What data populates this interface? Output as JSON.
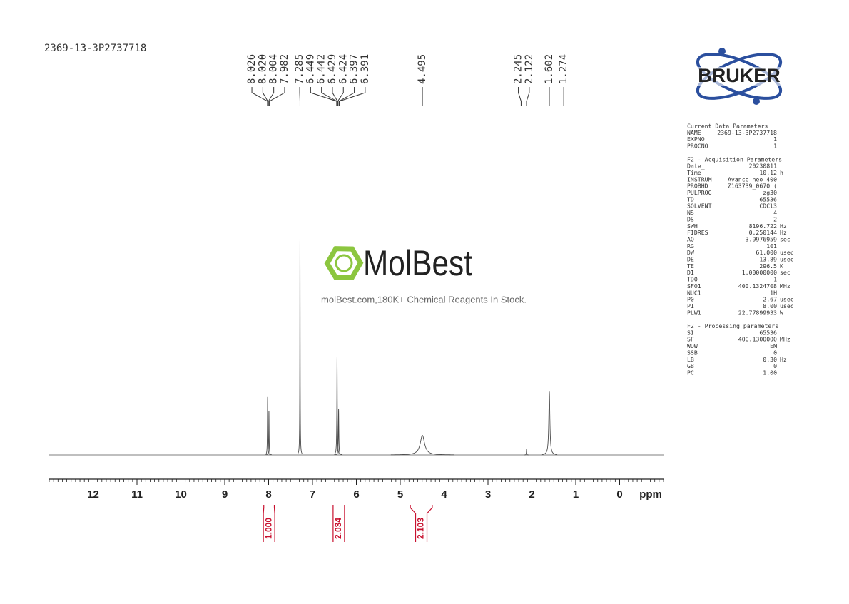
{
  "chart_data": {
    "type": "spectrum",
    "title": "2369-13-3P2737718",
    "x_label": "ppm",
    "xlim": [
      13,
      -1
    ],
    "xticks": [
      12,
      11,
      10,
      9,
      8,
      7,
      6,
      5,
      4,
      3,
      2,
      1,
      0
    ],
    "xminor": 0.1,
    "ylim": [
      0,
      100
    ],
    "color": "#4a4a4a",
    "peaks": {
      "x": [
        8.023,
        7.993,
        7.285,
        6.44,
        6.405,
        4.495,
        2.122,
        1.602
      ],
      "values": [
        26.5,
        20,
        100,
        45,
        21,
        9,
        2.6,
        29
      ],
      "widths": [
        0.005,
        0.005,
        0.004,
        0.006,
        0.006,
        0.06,
        0.004,
        0.015
      ]
    },
    "peak_labels": [
      {
        "value": 8.026,
        "label": "8.026"
      },
      {
        "value": 8.02,
        "label": "8.020"
      },
      {
        "value": 8.004,
        "label": "8.004"
      },
      {
        "value": 7.982,
        "label": "7.982"
      },
      {
        "value": 7.285,
        "label": "7.285"
      },
      {
        "value": 6.449,
        "label": "6.449"
      },
      {
        "value": 6.442,
        "label": "6.442"
      },
      {
        "value": 6.429,
        "label": "6.429"
      },
      {
        "value": 6.424,
        "label": "6.424"
      },
      {
        "value": 6.397,
        "label": "6.397"
      },
      {
        "value": 6.391,
        "label": "6.391"
      },
      {
        "value": 4.495,
        "label": "4.495"
      },
      {
        "value": 2.245,
        "label": "2.245"
      },
      {
        "value": 2.122,
        "label": "2.122"
      },
      {
        "value": 1.602,
        "label": "1.602"
      },
      {
        "value": 1.274,
        "label": "1.274"
      }
    ],
    "integrals": [
      {
        "value": 1.0,
        "label": "1.000",
        "range": [
          8.11,
          7.87
        ]
      },
      {
        "value": 2.034,
        "label": "2.034",
        "range": [
          6.53,
          6.27
        ]
      },
      {
        "value": 2.103,
        "label": "2.103",
        "range": [
          4.77,
          4.27
        ]
      }
    ],
    "integral_color": "#c8102e"
  },
  "logo": "BRUKER",
  "watermark": {
    "brand": "MolBest",
    "tagline": "molBest.com,180K+ Chemical Reagents In Stock."
  },
  "parameters": {
    "sections": [
      {
        "title": "Current Data Parameters",
        "rows": [
          [
            "NAME",
            "2369-13-3P2737718",
            ""
          ],
          [
            "EXPNO",
            "1",
            ""
          ],
          [
            "PROCNO",
            "1",
            ""
          ]
        ]
      },
      {
        "title": "F2 - Acquisition Parameters",
        "rows": [
          [
            "Date_",
            "20230811",
            ""
          ],
          [
            "Time",
            "10.12",
            "h"
          ],
          [
            "INSTRUM",
            "Avance neo 400",
            ""
          ],
          [
            "PROBHD",
            "Z163739_0670 (",
            ""
          ],
          [
            "PULPROG",
            "zg30",
            ""
          ],
          [
            "TD",
            "65536",
            ""
          ],
          [
            "SOLVENT",
            "CDCl3",
            ""
          ],
          [
            "NS",
            "4",
            ""
          ],
          [
            "DS",
            "2",
            ""
          ],
          [
            "SWH",
            "8196.722",
            "Hz"
          ],
          [
            "FIDRES",
            "0.250144",
            "Hz"
          ],
          [
            "AQ",
            "3.9976959",
            "sec"
          ],
          [
            "RG",
            "101",
            ""
          ],
          [
            "DW",
            "61.000",
            "usec"
          ],
          [
            "DE",
            "13.89",
            "usec"
          ],
          [
            "TE",
            "296.5",
            "K"
          ],
          [
            "D1",
            "1.00000000",
            "sec"
          ],
          [
            "TD0",
            "1",
            ""
          ],
          [
            "SFO1",
            "400.1324708",
            "MHz"
          ],
          [
            "NUC1",
            "1H",
            ""
          ],
          [
            "P0",
            "2.67",
            "usec"
          ],
          [
            "P1",
            "8.00",
            "usec"
          ],
          [
            "PLW1",
            "22.77899933",
            "W"
          ]
        ]
      },
      {
        "title": "F2 - Processing parameters",
        "rows": [
          [
            "SI",
            "65536",
            ""
          ],
          [
            "SF",
            "400.1300000",
            "MHz"
          ],
          [
            "WDW",
            "EM",
            ""
          ],
          [
            "SSB",
            "0",
            ""
          ],
          [
            "LB",
            "0.30",
            "Hz"
          ],
          [
            "GB",
            "0",
            ""
          ],
          [
            "PC",
            "1.00",
            ""
          ]
        ]
      }
    ]
  }
}
